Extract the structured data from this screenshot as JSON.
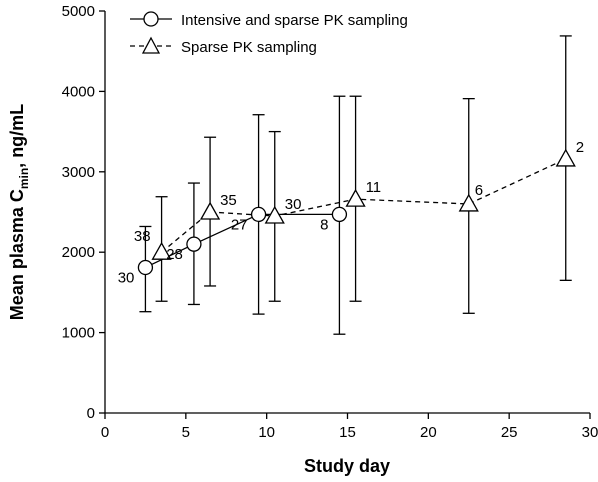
{
  "chart_data": {
    "type": "line",
    "xlabel": "Study day",
    "ylabel_main": "Mean plasma C",
    "ylabel_sub": "min",
    "ylabel_unit": ", ng/mL",
    "xlim": [
      0,
      30
    ],
    "ylim": [
      0,
      5000
    ],
    "x_ticks": [
      "0",
      "5",
      "10",
      "15",
      "20",
      "25",
      "30"
    ],
    "y_ticks": [
      "0",
      "1000",
      "2000",
      "3000",
      "4000",
      "5000"
    ],
    "grid": false,
    "legend_position": "top-left",
    "series": [
      {
        "name": "Intensive and sparse PK sampling",
        "marker": "circle",
        "line": "solid",
        "points": [
          {
            "x": 2.5,
            "y": 1810,
            "lo": 1260,
            "hi": 2320,
            "n": "30"
          },
          {
            "x": 5.5,
            "y": 2100,
            "lo": 1350,
            "hi": 2860,
            "n": "28"
          },
          {
            "x": 9.5,
            "y": 2470,
            "lo": 1230,
            "hi": 3710,
            "n": "27"
          },
          {
            "x": 14.5,
            "y": 2470,
            "lo": 980,
            "hi": 3940,
            "n": "8"
          }
        ]
      },
      {
        "name": "Sparse PK sampling",
        "marker": "triangle",
        "line": "dashed",
        "points": [
          {
            "x": 3.5,
            "y": 2000,
            "lo": 1390,
            "hi": 2690,
            "n": "38"
          },
          {
            "x": 6.5,
            "y": 2500,
            "lo": 1580,
            "hi": 3430,
            "n": "35"
          },
          {
            "x": 10.5,
            "y": 2450,
            "lo": 1390,
            "hi": 3500,
            "n": "30"
          },
          {
            "x": 15.5,
            "y": 2660,
            "lo": 1390,
            "hi": 3940,
            "n": "11"
          },
          {
            "x": 22.5,
            "y": 2600,
            "lo": 1240,
            "hi": 3910,
            "n": "6"
          },
          {
            "x": 28.5,
            "y": 3160,
            "lo": 1650,
            "hi": 4690,
            "n": "2"
          }
        ]
      }
    ]
  }
}
